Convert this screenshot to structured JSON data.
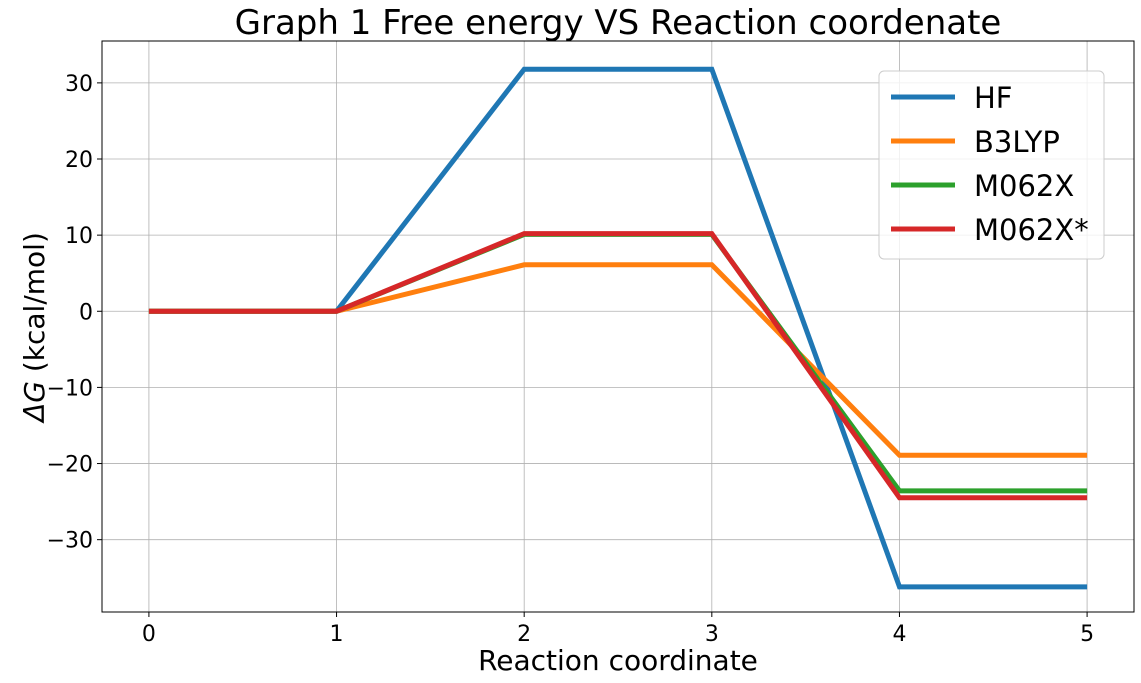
{
  "chart_data": {
    "type": "line",
    "title": "Graph 1 Free energy VS Reaction coordenate",
    "xlabel": "Reaction coordinate",
    "ylabel_symbol": "ΔG",
    "ylabel_unit": " (kcal/mol)",
    "x": [
      0,
      1,
      2,
      3,
      4,
      5
    ],
    "xlim": [
      -0.25,
      5.25
    ],
    "ylim": [
      -39.5,
      35.5
    ],
    "x_ticks": [
      0,
      1,
      2,
      3,
      4,
      5
    ],
    "y_ticks": [
      -30,
      -20,
      -10,
      0,
      10,
      20,
      30
    ],
    "grid": true,
    "legend_position": "top-right",
    "series": [
      {
        "name": "HF",
        "color": "#1f77b4",
        "values": [
          0,
          0,
          31.8,
          31.8,
          -36.2,
          -36.2
        ]
      },
      {
        "name": "B3LYP",
        "color": "#ff7f0e",
        "values": [
          0,
          0,
          6.1,
          6.1,
          -18.9,
          -18.9
        ]
      },
      {
        "name": "M062X",
        "color": "#2ca02c",
        "values": [
          0,
          0,
          10.1,
          10.1,
          -23.6,
          -23.6
        ]
      },
      {
        "name": "M062X*",
        "color": "#d62728",
        "values": [
          0,
          0,
          10.2,
          10.2,
          -24.5,
          -24.5
        ]
      }
    ]
  }
}
